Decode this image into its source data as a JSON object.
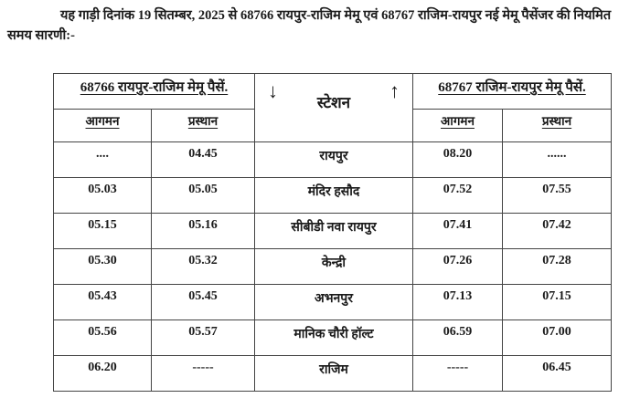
{
  "intro": "यह गाड़ी दिनांक 19 सितम्बर, 2025 से 68766 रायपुर-राजिम मेमू एवं 68767 राजिम-रायपुर नई मेमू पैसेंजर की नियमित समय सारणी:-",
  "table": {
    "left_train": "68766 रायपुर-राजिम मेमू पैसें.",
    "right_train": "68767 राजिम-रायपुर मेमू पैसें.",
    "station_header": "स्टेशन",
    "arrow_down": "↓",
    "arrow_up": "↑",
    "arrival": "आगमन",
    "departure": "प्रस्थान",
    "rows": [
      {
        "l_arr": "....",
        "l_dep": "04.45",
        "station": "रायपुर",
        "r_arr": "08.20",
        "r_dep": "......"
      },
      {
        "l_arr": "05.03",
        "l_dep": "05.05",
        "station": "मंदिर हसौद",
        "r_arr": "07.52",
        "r_dep": "07.55"
      },
      {
        "l_arr": "05.15",
        "l_dep": "05.16",
        "station": "सीबीडी नवा रायपुर",
        "r_arr": "07.41",
        "r_dep": "07.42"
      },
      {
        "l_arr": "05.30",
        "l_dep": "05.32",
        "station": "केन्द्री",
        "r_arr": "07.26",
        "r_dep": "07.28"
      },
      {
        "l_arr": "05.43",
        "l_dep": "05.45",
        "station": "अभनपुर",
        "r_arr": "07.13",
        "r_dep": "07.15"
      },
      {
        "l_arr": "05.56",
        "l_dep": "05.57",
        "station": "मानिक चौरी हॉल्ट",
        "r_arr": "06.59",
        "r_dep": "07.00"
      },
      {
        "l_arr": "06.20",
        "l_dep": "-----",
        "station": "राजिम",
        "r_arr": "-----",
        "r_dep": "06.45"
      }
    ]
  }
}
